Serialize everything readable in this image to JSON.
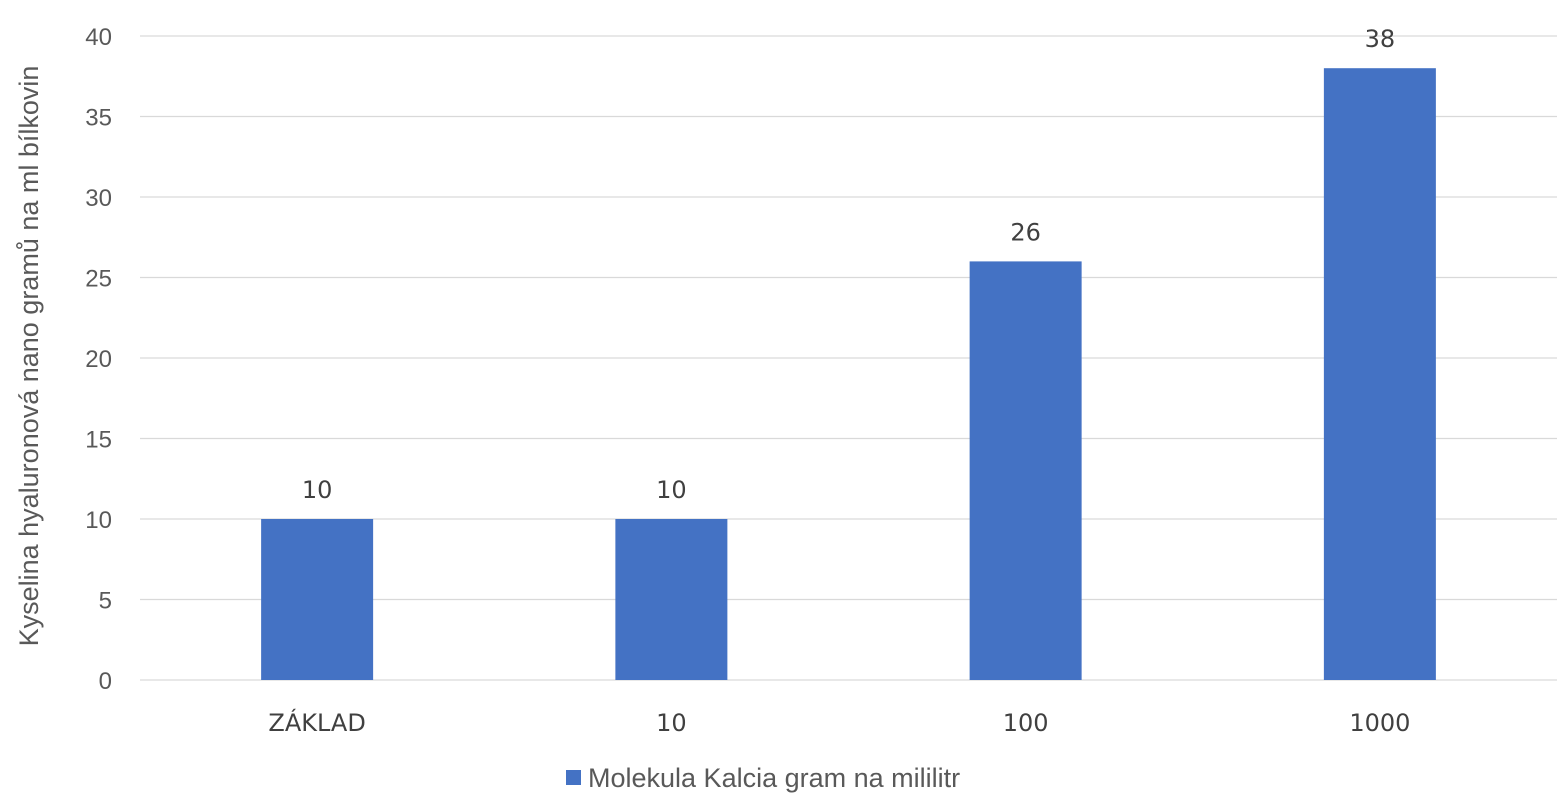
{
  "chart_data": {
    "type": "bar",
    "categories": [
      "ZÁKLAD",
      "10",
      "100",
      "1000"
    ],
    "series": [
      {
        "name": "Molekula Kalcia gram na mililitr",
        "values": [
          10,
          10,
          26,
          38
        ],
        "color": "#4472c4"
      }
    ],
    "ylabel": "Kyselina hyaluronová nano gramů na ml bílkovin",
    "xlabel": "",
    "ylim": [
      0,
      40
    ],
    "yticks": [
      0,
      5,
      10,
      15,
      20,
      25,
      30,
      35,
      40
    ],
    "grid": true,
    "legend_position": "bottom",
    "data_labels": true
  }
}
